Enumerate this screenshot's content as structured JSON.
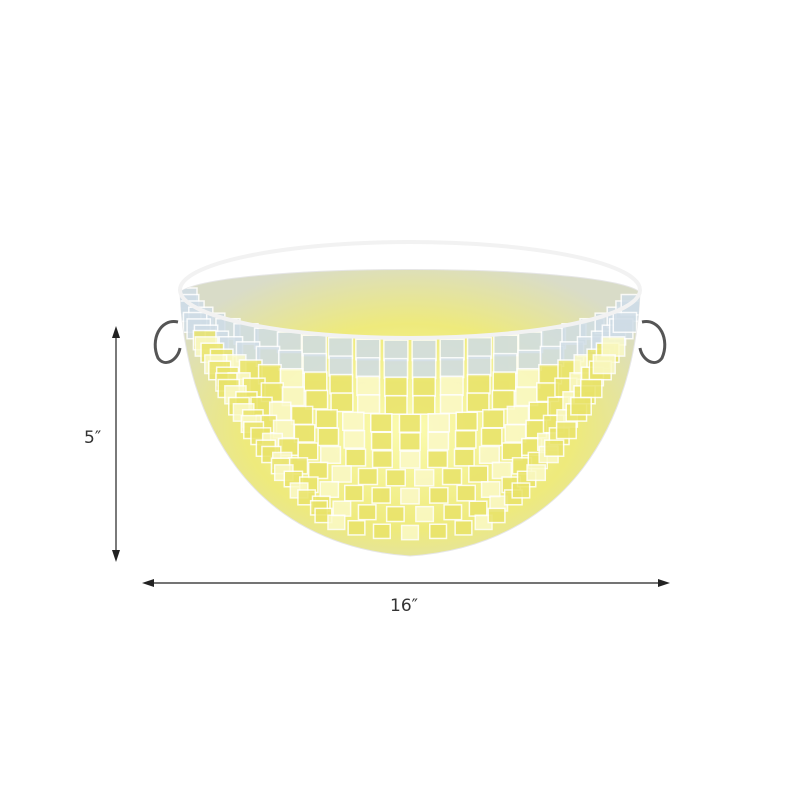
{
  "product": {
    "height_label": "5″",
    "width_label": "16″"
  },
  "colors": {
    "glow": "#f4f27a",
    "tile_light": "#fbf9c8",
    "tile_warm": "#e9e36a",
    "rim_blue": "#cfdce6",
    "arrow": "#222222"
  }
}
